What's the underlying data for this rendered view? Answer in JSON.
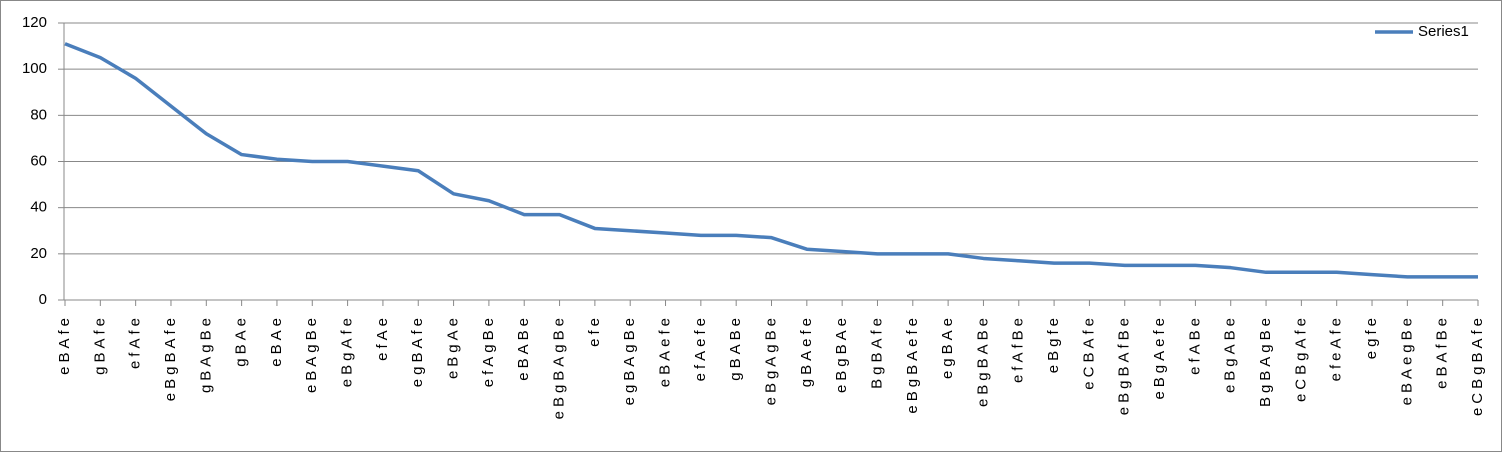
{
  "chart_data": {
    "type": "line",
    "categories": [
      "eBAfe",
      "gBAfe",
      "efAfe",
      "eBgBAfe",
      "gBAgBe",
      "gBAe",
      "eBAe",
      "eBAgBe",
      "eBgAfe",
      "efAe",
      "egBAfe",
      "eBgAe",
      "efAgBe",
      "eBABe",
      "eBgBAgBe",
      "efe",
      "egBAgBe",
      "eBAefe",
      "efAefe",
      "gBABe",
      "eBgAgBe",
      "gBAefe",
      "eBgBAe",
      "BgBAfe",
      "eBgBAefe",
      "egBAe",
      "eBgBABe",
      "efAfBe",
      "eBgfe",
      "eCBAfe",
      "eBgBAfBe",
      "eBgAefe",
      "efABe",
      "eBgABe",
      "BgBAgBe",
      "eCBgAfe",
      "efeAfe",
      "egfe",
      "eBAegBe",
      "eBAfBe",
      "eCBgBAfe"
    ],
    "series": [
      {
        "name": "Series1",
        "color": "#4a7ebb",
        "values": [
          111,
          105,
          96,
          84,
          72,
          63,
          61,
          60,
          60,
          58,
          56,
          46,
          43,
          37,
          37,
          31,
          30,
          29,
          28,
          28,
          27,
          22,
          21,
          20,
          20,
          20,
          18,
          17,
          16,
          16,
          15,
          15,
          15,
          14,
          12,
          12,
          12,
          11,
          10,
          10,
          10
        ]
      }
    ],
    "ylim": [
      0,
      120
    ],
    "yticks": [
      0,
      20,
      40,
      60,
      80,
      100,
      120
    ],
    "grid": true,
    "legend": "top-right"
  }
}
